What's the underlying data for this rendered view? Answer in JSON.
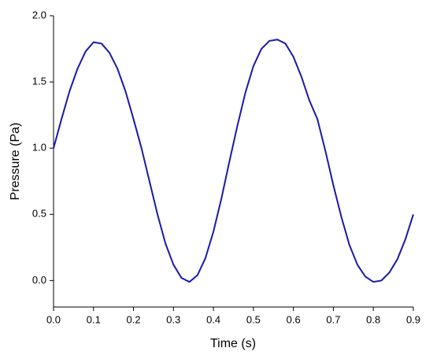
{
  "chart_data": {
    "type": "line",
    "x_label": "Time (s)",
    "y_label": "Pressure (Pa)",
    "x": [
      0,
      0.02,
      0.04,
      0.06,
      0.08,
      0.1,
      0.12,
      0.14,
      0.16,
      0.18,
      0.2,
      0.22,
      0.24,
      0.26,
      0.28,
      0.3,
      0.32,
      0.34,
      0.36,
      0.38,
      0.4,
      0.42,
      0.44,
      0.46,
      0.48,
      0.5,
      0.52,
      0.54,
      0.56,
      0.58,
      0.6,
      0.62,
      0.64,
      0.66,
      0.68,
      0.7,
      0.72,
      0.74,
      0.76,
      0.78,
      0.8,
      0.82,
      0.84,
      0.86,
      0.88,
      0.9
    ],
    "series": [
      {
        "color": "#1a1aaa",
        "values": [
          1.0,
          1.22,
          1.43,
          1.6,
          1.73,
          1.8,
          1.79,
          1.72,
          1.6,
          1.43,
          1.22,
          1.0,
          0.75,
          0.5,
          0.28,
          0.12,
          0.02,
          -0.01,
          0.04,
          0.17,
          0.37,
          0.62,
          0.9,
          1.17,
          1.42,
          1.62,
          1.75,
          1.81,
          1.82,
          1.79,
          1.69,
          1.54,
          1.36,
          1.22,
          0.98,
          0.72,
          0.48,
          0.27,
          0.12,
          0.03,
          -0.01,
          0.0,
          0.06,
          0.16,
          0.31,
          0.5
        ]
      }
    ],
    "xlim": [
      0,
      0.9
    ],
    "ylim": [
      -0.2,
      2.0
    ],
    "xticks": [
      {
        "value": 0,
        "label": "0.0"
      },
      0.1,
      0.2,
      0.3,
      0.4,
      0.5,
      0.6,
      0.7,
      0.8,
      0.9
    ],
    "yticks": [
      {
        "value": 0,
        "label": "0.0"
      },
      0.5,
      {
        "value": 1,
        "label": "1.0"
      },
      1.5,
      {
        "value": 2,
        "label": "2.0"
      }
    ],
    "grid": false
  }
}
